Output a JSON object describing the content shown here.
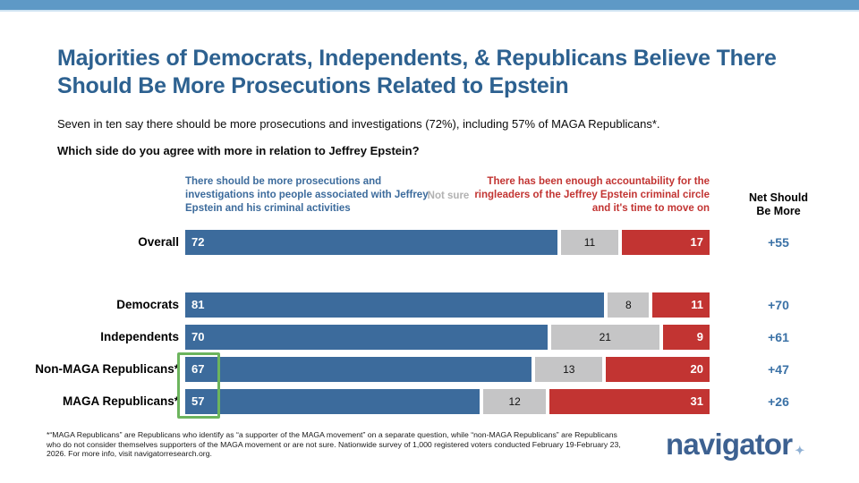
{
  "page": {
    "title": "Majorities of Democrats, Independents, & Republicans Believe There Should Be More Prosecutions Related to Epstein",
    "subtitle": "Seven in ten say there should be more prosecutions and investigations (72%), including 57% of MAGA Republicans*.",
    "question": "Which side do you agree with more in relation to Jeffrey Epstein?",
    "footnote": "*“MAGA Republicans” are Republicans who identify as “a supporter of the MAGA movement” on a separate question, while “non-MAGA Republicans” are Republicans who do not consider themselves supporters of the MAGA movement or are not sure. Nationwide survey of 1,000 registered voters conducted February 19-February 23, 2026. For more info, visit navigatorresearch.org.",
    "logo_text": "navigator",
    "logo_mark": "✦"
  },
  "chart_data": {
    "type": "bar",
    "stacked": true,
    "orientation": "horizontal",
    "xlim": [
      0,
      100
    ],
    "headers": {
      "left": "There should be more prosecutions and investigations into people associated with Jeffrey Epstein and his criminal activities",
      "middle": "Not sure",
      "right": "There has been enough accountability for the ringleaders of the Jeffrey Epstein criminal circle and it's time to move on",
      "net": "Net Should Be More"
    },
    "series_names": [
      "Should be more prosecutions",
      "Not sure",
      "Enough accountability, time to move on"
    ],
    "categories": [
      "Overall",
      "Democrats",
      "Independents",
      "Non-MAGA Republicans*",
      "MAGA Republicans*"
    ],
    "rows": [
      {
        "label": "Overall",
        "values": [
          72,
          11,
          17
        ],
        "net": "+55"
      },
      {
        "label": "Democrats",
        "values": [
          81,
          8,
          11
        ],
        "net": "+70"
      },
      {
        "label": "Independents",
        "values": [
          70,
          21,
          9
        ],
        "net": "+61"
      },
      {
        "label": "Non-MAGA Republicans*",
        "values": [
          67,
          13,
          20
        ],
        "net": "+47"
      },
      {
        "label": "MAGA Republicans*",
        "values": [
          57,
          12,
          31
        ],
        "net": "+26"
      }
    ],
    "annotations": [
      "green highlight box around the 67 and 57 values of the Republican rows"
    ],
    "colors": {
      "stripe": "#5e99c6",
      "title": "#2d6190",
      "left_segment": "#3c6b9c",
      "middle_segment": "#c5c5c6",
      "right_segment": "#c23432",
      "net_values": "#3a71a6",
      "highlight": "#6cb45d",
      "logo": "#3d6191"
    }
  }
}
